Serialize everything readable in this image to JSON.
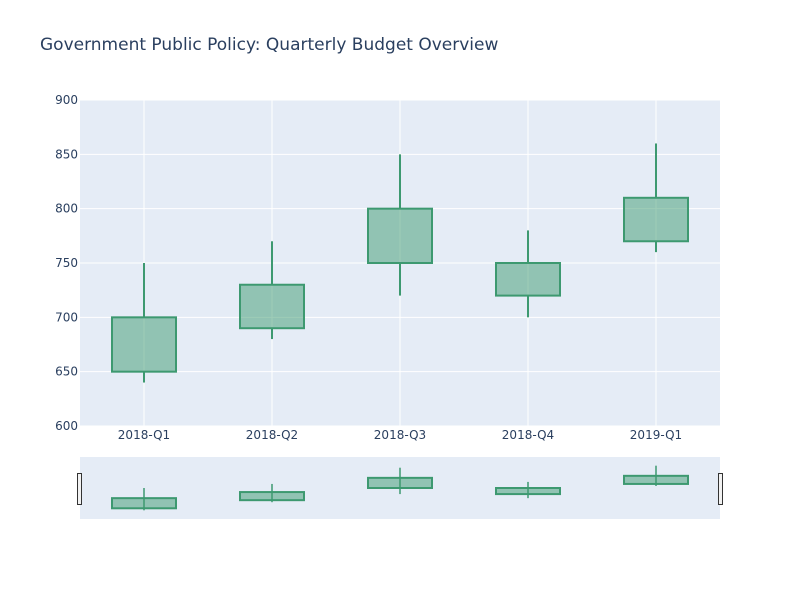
{
  "chart_data": {
    "type": "candlestick",
    "title": "Government Public Policy: Quarterly Budget Overview",
    "xlabel": "",
    "ylabel": "",
    "categories": [
      "2018-Q1",
      "2018-Q2",
      "2018-Q3",
      "2018-Q4",
      "2019-Q1"
    ],
    "open": [
      650,
      690,
      750,
      720,
      770
    ],
    "high": [
      750,
      770,
      850,
      780,
      860
    ],
    "low": [
      640,
      680,
      720,
      700,
      760
    ],
    "close": [
      700,
      730,
      800,
      750,
      810
    ],
    "ylim": [
      600,
      900
    ],
    "yticks": [
      600,
      650,
      700,
      750,
      800,
      850,
      900
    ],
    "grid": true,
    "rangeslider": true,
    "colors": {
      "increasing_line": "#3d9970",
      "increasing_fill": "rgba(61,153,112,0.5)",
      "plot_bg": "#e5ecf6",
      "grid": "#ffffff",
      "text": "#2a3f5f"
    }
  }
}
